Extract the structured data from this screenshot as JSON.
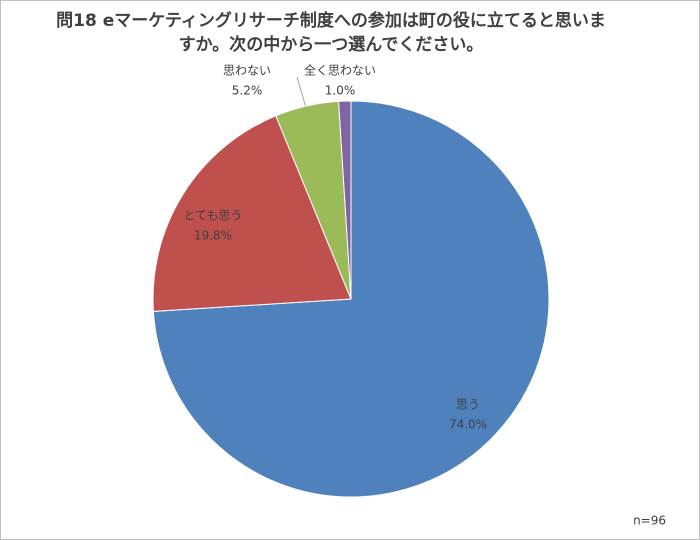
{
  "chart_data": {
    "type": "pie",
    "title": "問18  eマーケティングリサーチ制度への参加は町の役に立てると思いますか。次の中から一つ選んでください。",
    "categories": [
      "思う",
      "とても思う",
      "思わない",
      "全く思わない"
    ],
    "values": [
      74.0,
      19.8,
      5.2,
      1.0
    ],
    "value_labels": [
      "74.0%",
      "19.8%",
      "5.2%",
      "1.0%"
    ],
    "colors": [
      "#4f81bd",
      "#c0504d",
      "#9bbb59",
      "#8064a2"
    ],
    "note": "n=96"
  }
}
